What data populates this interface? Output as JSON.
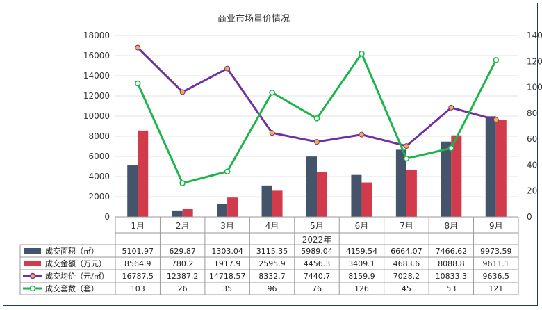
{
  "chart_data": {
    "type": "bar+line",
    "title": "商业市场量价情况",
    "x_group_label": "2022年",
    "categories": [
      "1月",
      "2月",
      "3月",
      "4月",
      "5月",
      "6月",
      "7月",
      "8月",
      "9月"
    ],
    "y_left_ticks": [
      "0",
      "2000",
      "4000",
      "6000",
      "8000",
      "10000",
      "12000",
      "14000",
      "16000",
      "18000"
    ],
    "y_right_ticks": [
      "0",
      "20",
      "40",
      "60",
      "80",
      "100",
      "120",
      "140"
    ],
    "ylim_left": [
      0,
      18000
    ],
    "ylim_right": [
      0,
      140
    ],
    "grid": true,
    "colors": {
      "area": "#44546a",
      "amount": "#d13b4c",
      "price": "#7030a0",
      "price_marker": "#f0b43c",
      "units": "#1db54a",
      "units_marker": "#ffffff"
    },
    "series": [
      {
        "name": "成交面积（㎡）",
        "kind": "bar",
        "axis": "left",
        "values": [
          5101.97,
          629.87,
          1303.04,
          3115.35,
          5989.04,
          4159.54,
          6664.07,
          7466.62,
          9973.59
        ],
        "labels": [
          "5101.97",
          "629.87",
          "1303.04",
          "3115.35",
          "5989.04",
          "4159.54",
          "6664.07",
          "7466.62",
          "9973.59"
        ]
      },
      {
        "name": "成交金额（万元）",
        "kind": "bar",
        "axis": "left",
        "values": [
          8564.9,
          780.2,
          1917.9,
          2595.9,
          4456.3,
          3409.1,
          4683.6,
          8088.8,
          9611.1
        ],
        "labels": [
          "8564.9",
          "780.2",
          "1917.9",
          "2595.9",
          "4456.3",
          "3409.1",
          "4683.6",
          "8088.8",
          "9611.1"
        ]
      },
      {
        "name": "成交均价（元/㎡）",
        "kind": "line",
        "axis": "left",
        "values": [
          16787.5,
          12387.2,
          14718.57,
          8332.7,
          7440.7,
          8159.9,
          7028.2,
          10833.3,
          9636.5
        ],
        "labels": [
          "16787.5",
          "12387.2",
          "14718.57",
          "8332.7",
          "7440.7",
          "8159.9",
          "7028.2",
          "10833.3",
          "9636.5"
        ]
      },
      {
        "name": "成交套数（套）",
        "kind": "line",
        "axis": "right",
        "values": [
          103,
          26,
          35,
          96,
          76,
          126,
          45,
          53,
          121
        ],
        "labels": [
          "103",
          "26",
          "35",
          "96",
          "76",
          "126",
          "45",
          "53",
          "121"
        ]
      }
    ]
  }
}
